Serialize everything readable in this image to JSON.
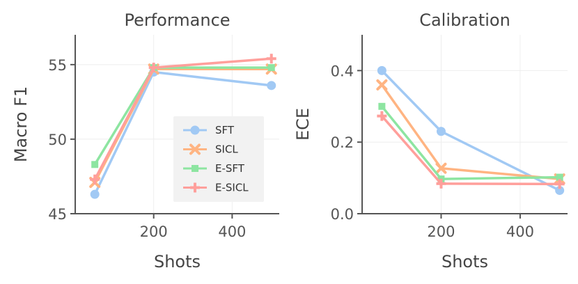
{
  "chart_data": [
    {
      "type": "line",
      "title": "Performance",
      "xlabel": "Shots",
      "ylabel": "Macro F1",
      "xlim": [
        0,
        520
      ],
      "ylim": [
        45,
        57
      ],
      "xticks": [
        200,
        400
      ],
      "yticks": [
        45,
        50,
        55
      ],
      "x": [
        50,
        200,
        500
      ],
      "grid": true,
      "legend": "center-right",
      "series": [
        {
          "name": "SFT",
          "marker": "circle",
          "color": "#a1c9f4",
          "values": [
            46.3,
            54.5,
            53.6
          ]
        },
        {
          "name": "SICL",
          "marker": "x",
          "color": "#ffb482",
          "values": [
            47.1,
            54.7,
            54.7
          ]
        },
        {
          "name": "E-SFT",
          "marker": "square",
          "color": "#8de5a1",
          "values": [
            48.3,
            54.8,
            54.8
          ]
        },
        {
          "name": "E-SICL",
          "marker": "plus",
          "color": "#ff9f9b",
          "values": [
            47.3,
            54.8,
            55.4
          ]
        }
      ]
    },
    {
      "type": "line",
      "title": "Calibration",
      "xlabel": "Shots",
      "ylabel": "ECE",
      "xlim": [
        0,
        520
      ],
      "ylim": [
        0,
        0.5
      ],
      "xticks": [
        200,
        400
      ],
      "yticks": [
        0,
        0.2,
        0.4
      ],
      "ytick_labels": [
        "0.0",
        "0.2",
        "0.4"
      ],
      "x": [
        50,
        200,
        500
      ],
      "grid": true,
      "series": [
        {
          "name": "SFT",
          "marker": "circle",
          "color": "#a1c9f4",
          "values": [
            0.4,
            0.23,
            0.065
          ]
        },
        {
          "name": "SICL",
          "marker": "x",
          "color": "#ffb482",
          "values": [
            0.36,
            0.127,
            0.097
          ]
        },
        {
          "name": "E-SFT",
          "marker": "square",
          "color": "#8de5a1",
          "values": [
            0.3,
            0.097,
            0.102
          ]
        },
        {
          "name": "E-SICL",
          "marker": "plus",
          "color": "#ff9f9b",
          "values": [
            0.273,
            0.084,
            0.083
          ]
        }
      ]
    }
  ]
}
